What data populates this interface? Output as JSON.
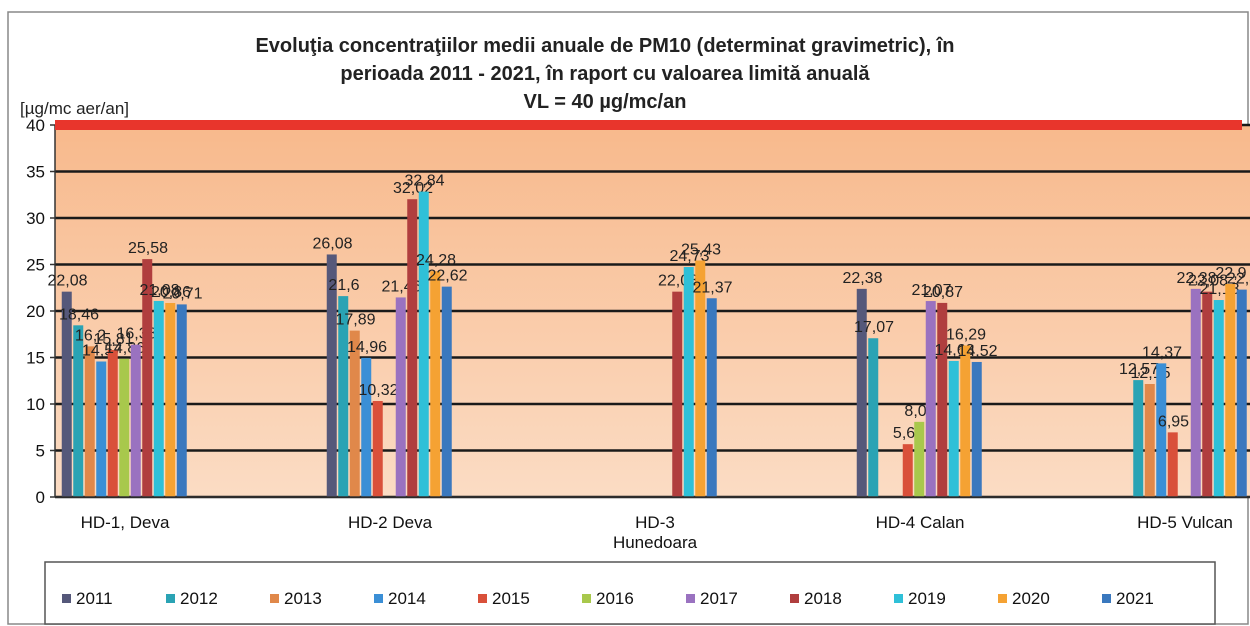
{
  "chart_data": {
    "type": "bar",
    "title": "Evoluţia concentraţiilor medii anuale de PM10 (determinat gravimetric), în",
    "subtitle": "perioada 2011 - 2021, în raport cu valoarea limită anuală",
    "annotation": "VL = 40 µg/mc/an",
    "y_label": "[µg/mc aer/an]",
    "categories": [
      "HD-1, Deva",
      "HD-2 Deva",
      "HD-3 Hunedoara",
      "HD-4 Calan",
      "HD-5 Vulcan"
    ],
    "limit_line": {
      "value": 40,
      "color": "#e8352c"
    },
    "ylim": [
      0,
      40
    ],
    "yticks": [
      0,
      5,
      10,
      15,
      20,
      25,
      30,
      35,
      40
    ],
    "grid": true,
    "legend": "bottom",
    "series": [
      {
        "name": "2011",
        "color": "#55587a",
        "values": [
          22.08,
          26.08,
          null,
          22.38,
          null
        ],
        "value_labels": [
          "22,08",
          "26,08",
          null,
          "22,38",
          null
        ]
      },
      {
        "name": "2012",
        "color": "#2aa3b4",
        "values": [
          18.46,
          21.6,
          null,
          17.07,
          12.57
        ],
        "value_labels": [
          "18,46",
          "21,6",
          null,
          "17,07",
          "12,57"
        ]
      },
      {
        "name": "2013",
        "color": "#e0884a",
        "values": [
          16.2,
          17.89,
          null,
          null,
          12.15
        ],
        "value_labels": [
          "16,2",
          "17,89",
          null,
          null,
          "12,15"
        ]
      },
      {
        "name": "2014",
        "color": "#3b8fd6",
        "values": [
          14.57,
          14.96,
          null,
          null,
          14.37
        ],
        "value_labels": [
          "14,57",
          "14,96",
          null,
          null,
          "14,37"
        ]
      },
      {
        "name": "2015",
        "color": "#d9503a",
        "values": [
          15.81,
          10.32,
          null,
          5.68,
          6.95
        ],
        "value_labels": [
          "15,81",
          "10,32",
          null,
          "5,68",
          "6,95"
        ]
      },
      {
        "name": "2016",
        "color": "#a8c84c",
        "values": [
          14.86,
          null,
          null,
          8.08,
          null
        ],
        "value_labels": [
          "14,86",
          null,
          null,
          "8,08",
          null
        ]
      },
      {
        "name": "2017",
        "color": "#9a72c0",
        "values": [
          16.38,
          21.46,
          null,
          21.07,
          22.38
        ],
        "value_labels": [
          "16,38",
          "21,46",
          null,
          "21,07",
          "22,38"
        ]
      },
      {
        "name": "2018",
        "color": "#b03e3e",
        "values": [
          25.58,
          32.02,
          22.08,
          20.87,
          22.08
        ],
        "value_labels": [
          "25,58",
          "32,02",
          "22,08",
          "20,87",
          "22,08"
        ]
      },
      {
        "name": "2019",
        "color": "#2fc0d8",
        "values": [
          21.08,
          32.84,
          24.73,
          14.63,
          21.18
        ],
        "value_labels": [
          "21,08",
          "32,84",
          "24,73",
          "14,63",
          "21,18"
        ]
      },
      {
        "name": "2020",
        "color": "#f5a233",
        "values": [
          20.86,
          24.28,
          25.43,
          16.29,
          22.9
        ],
        "value_labels": [
          "20,86",
          "24,28",
          "25,43",
          "16,29",
          "22,9"
        ]
      },
      {
        "name": "2021",
        "color": "#3a78be",
        "values": [
          20.71,
          22.62,
          21.37,
          14.52,
          22.3
        ],
        "value_labels": [
          "20,71",
          "22,62",
          "21,37",
          "14,52",
          "22,3"
        ]
      }
    ]
  }
}
